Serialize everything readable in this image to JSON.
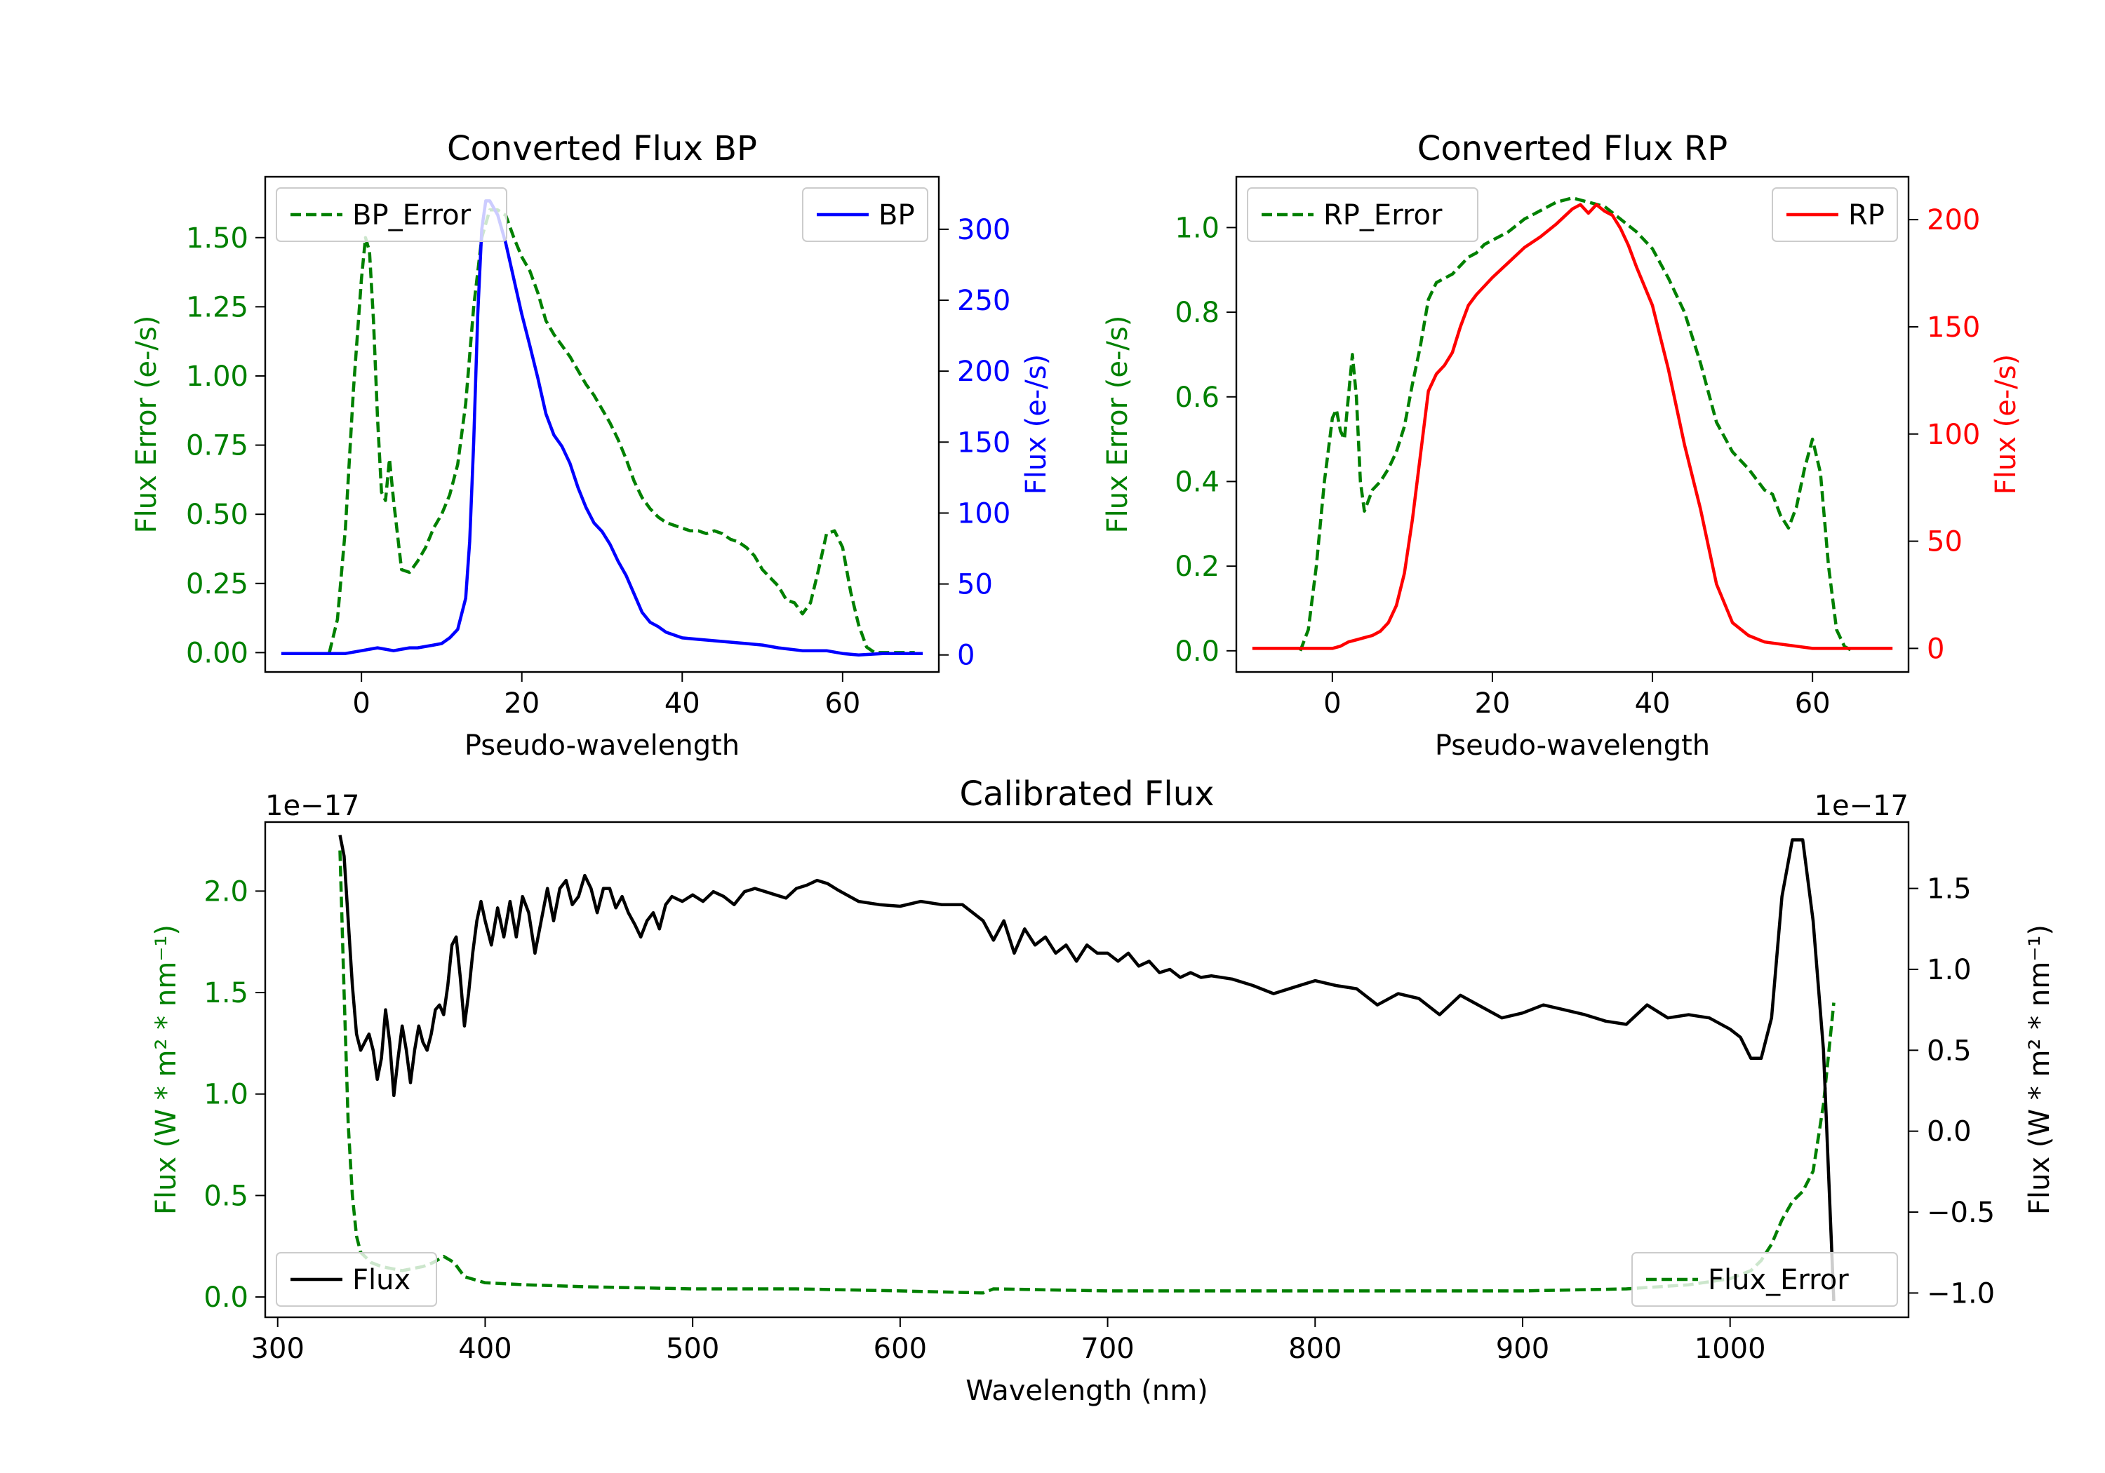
{
  "chart_data": [
    {
      "type": "line",
      "title": "Converted Flux BP",
      "xlabel": "Pseudo-wavelength",
      "xlim": [
        -12,
        72
      ],
      "xticks": [
        0,
        20,
        40,
        60
      ],
      "left_axis": {
        "label": "Flux Error (e-/s)",
        "color": "#008000",
        "lim": [
          -0.07,
          1.72
        ],
        "ticks": [
          "0.00",
          "0.25",
          "0.50",
          "0.75",
          "1.00",
          "1.25",
          "1.50"
        ]
      },
      "right_axis": {
        "label": "Flux (e-/s)",
        "color": "#0000ff",
        "lim": [
          -12,
          337
        ],
        "ticks": [
          "0",
          "50",
          "100",
          "150",
          "200",
          "250",
          "300"
        ]
      },
      "series": [
        {
          "name": "BP_Error",
          "axis": "left",
          "style": "dashed",
          "color": "#008000",
          "x": [
            -4,
            -3,
            -2,
            -1,
            0,
            0.5,
            1,
            1.5,
            2,
            2.5,
            3,
            3.5,
            4,
            5,
            6,
            7,
            8,
            9,
            10,
            11,
            12,
            13,
            14,
            15,
            16,
            17,
            18,
            19,
            20,
            21,
            22,
            23,
            24,
            25,
            26,
            27,
            28,
            29,
            30,
            31,
            32,
            33,
            34,
            35,
            36,
            37,
            38,
            39,
            40,
            41,
            42,
            43,
            44,
            45,
            46,
            47,
            48,
            49,
            50,
            51,
            52,
            53,
            54,
            55,
            56,
            57,
            58,
            59,
            60,
            61,
            62,
            63,
            64,
            65,
            66,
            67,
            68,
            69
          ],
          "y": [
            0.0,
            0.12,
            0.45,
            0.95,
            1.35,
            1.5,
            1.45,
            1.2,
            0.85,
            0.58,
            0.55,
            0.7,
            0.55,
            0.3,
            0.29,
            0.33,
            0.38,
            0.45,
            0.5,
            0.57,
            0.68,
            0.9,
            1.25,
            1.5,
            1.6,
            1.6,
            1.58,
            1.5,
            1.43,
            1.38,
            1.3,
            1.2,
            1.15,
            1.11,
            1.07,
            1.02,
            0.97,
            0.93,
            0.88,
            0.83,
            0.77,
            0.7,
            0.62,
            0.56,
            0.52,
            0.49,
            0.47,
            0.46,
            0.45,
            0.44,
            0.44,
            0.43,
            0.44,
            0.43,
            0.41,
            0.4,
            0.38,
            0.35,
            0.3,
            0.27,
            0.24,
            0.19,
            0.18,
            0.14,
            0.18,
            0.3,
            0.43,
            0.44,
            0.38,
            0.22,
            0.1,
            0.02,
            0.0,
            0.0,
            0.0,
            0.0,
            0.0,
            0.0
          ]
        },
        {
          "name": "BP",
          "axis": "right",
          "style": "solid",
          "color": "#0000ff",
          "x": [
            -10,
            -5,
            -2,
            0,
            1,
            2,
            3,
            4,
            5,
            6,
            7,
            8,
            9,
            10,
            11,
            12,
            13,
            13.5,
            14,
            14.5,
            15,
            15.5,
            16,
            17,
            18,
            19,
            20,
            21,
            22,
            23,
            24,
            25,
            26,
            27,
            28,
            29,
            30,
            31,
            32,
            33,
            34,
            35,
            36,
            37,
            38,
            39,
            40,
            42,
            44,
            46,
            48,
            50,
            52,
            55,
            58,
            60,
            62,
            65,
            68,
            70
          ],
          "y": [
            1,
            1,
            1,
            3,
            4,
            5,
            4,
            3,
            4,
            5,
            5,
            6,
            7,
            8,
            12,
            18,
            40,
            80,
            150,
            240,
            300,
            320,
            320,
            310,
            290,
            265,
            240,
            218,
            195,
            170,
            155,
            147,
            135,
            118,
            104,
            93,
            87,
            78,
            66,
            56,
            43,
            30,
            23,
            20,
            16,
            14,
            12,
            11,
            10,
            9,
            8,
            7,
            5,
            3,
            3,
            1,
            0,
            1,
            1,
            1
          ]
        }
      ],
      "legends": [
        {
          "label": "BP_Error",
          "loc": "upper-left"
        },
        {
          "label": "BP",
          "loc": "upper-right"
        }
      ]
    },
    {
      "type": "line",
      "title": "Converted Flux RP",
      "xlabel": "Pseudo-wavelength",
      "xlim": [
        -12,
        72
      ],
      "xticks": [
        0,
        20,
        40,
        60
      ],
      "left_axis": {
        "label": "Flux Error (e-/s)",
        "color": "#008000",
        "lim": [
          -0.05,
          1.12
        ],
        "ticks": [
          "0.0",
          "0.2",
          "0.4",
          "0.6",
          "0.8",
          "1.0"
        ]
      },
      "right_axis": {
        "label": "Flux (e-/s)",
        "color": "#ff0000",
        "lim": [
          -11,
          220
        ],
        "ticks": [
          "0",
          "50",
          "100",
          "150",
          "200"
        ]
      },
      "series": [
        {
          "name": "RP_Error",
          "axis": "left",
          "style": "dashed",
          "color": "#008000",
          "x": [
            -4,
            -3,
            -2,
            -1,
            0,
            0.5,
            1,
            1.5,
            2,
            2.5,
            3,
            3.5,
            4,
            5,
            6,
            7,
            8,
            9,
            10,
            11,
            12,
            13,
            14,
            15,
            16,
            17,
            18,
            19,
            20,
            22,
            24,
            26,
            28,
            30,
            32,
            34,
            36,
            38,
            40,
            42,
            44,
            46,
            48,
            50,
            52,
            54,
            55,
            56,
            57,
            58,
            59,
            60,
            61,
            62,
            63,
            64,
            65
          ],
          "y": [
            0.0,
            0.05,
            0.2,
            0.4,
            0.55,
            0.57,
            0.52,
            0.5,
            0.6,
            0.7,
            0.6,
            0.4,
            0.33,
            0.38,
            0.4,
            0.43,
            0.47,
            0.53,
            0.63,
            0.72,
            0.83,
            0.87,
            0.88,
            0.89,
            0.91,
            0.93,
            0.94,
            0.96,
            0.97,
            0.99,
            1.02,
            1.04,
            1.06,
            1.07,
            1.06,
            1.05,
            1.02,
            0.99,
            0.95,
            0.88,
            0.8,
            0.68,
            0.54,
            0.47,
            0.43,
            0.38,
            0.37,
            0.32,
            0.29,
            0.34,
            0.43,
            0.5,
            0.42,
            0.2,
            0.05,
            0.01,
            0.0
          ]
        },
        {
          "name": "RP",
          "axis": "right",
          "style": "solid",
          "color": "#ff0000",
          "x": [
            -10,
            -2,
            0,
            1,
            2,
            3,
            4,
            5,
            6,
            7,
            8,
            9,
            10,
            11,
            12,
            13,
            14,
            15,
            16,
            17,
            18,
            20,
            22,
            24,
            26,
            28,
            30,
            31,
            32,
            33,
            34,
            35,
            36,
            37,
            38,
            40,
            42,
            44,
            46,
            48,
            50,
            52,
            54,
            56,
            58,
            60,
            62,
            65,
            70
          ],
          "y": [
            0,
            0,
            0,
            1,
            3,
            4,
            5,
            6,
            8,
            12,
            20,
            35,
            60,
            90,
            120,
            128,
            132,
            138,
            150,
            160,
            165,
            173,
            180,
            187,
            192,
            198,
            205,
            207,
            203,
            207,
            204,
            202,
            196,
            188,
            178,
            160,
            130,
            95,
            65,
            30,
            12,
            6,
            3,
            2,
            1,
            0,
            0,
            0,
            0
          ]
        }
      ],
      "legends": [
        {
          "label": "RP_Error",
          "loc": "upper-left"
        },
        {
          "label": "RP",
          "loc": "upper-right"
        }
      ]
    },
    {
      "type": "line",
      "title": "Calibrated Flux",
      "xlabel": "Wavelength (nm)",
      "xlim": [
        294,
        1086
      ],
      "xticks": [
        300,
        400,
        500,
        600,
        700,
        800,
        900,
        1000
      ],
      "left_axis": {
        "label": "Flux (W * m² * nm⁻¹)",
        "color": "#008000",
        "lim": [
          -0.1,
          2.34
        ],
        "ticks": [
          "0.0",
          "0.5",
          "1.0",
          "1.5",
          "2.0"
        ],
        "offset_text": "1e−17"
      },
      "right_axis": {
        "label": "Flux (W * m² * nm⁻¹)",
        "color": "#000000",
        "lim": [
          -1.15,
          1.91
        ],
        "ticks": [
          "−1.0",
          "−0.5",
          "0.0",
          "0.5",
          "1.0",
          "1.5"
        ],
        "offset_text": "1e−17"
      },
      "series": [
        {
          "name": "Flux_Error",
          "axis": "left",
          "style": "dashed",
          "color": "#008000",
          "x": [
            330,
            332,
            334,
            336,
            338,
            340,
            345,
            350,
            360,
            370,
            375,
            380,
            385,
            390,
            400,
            420,
            450,
            500,
            550,
            600,
            640,
            645,
            700,
            750,
            800,
            850,
            900,
            950,
            980,
            1000,
            1010,
            1015,
            1020,
            1025,
            1030,
            1035,
            1040,
            1045,
            1050
          ],
          "y": [
            2.2,
            1.5,
            0.85,
            0.5,
            0.3,
            0.22,
            0.17,
            0.15,
            0.13,
            0.15,
            0.17,
            0.2,
            0.17,
            0.1,
            0.07,
            0.06,
            0.05,
            0.04,
            0.04,
            0.03,
            0.02,
            0.04,
            0.03,
            0.03,
            0.03,
            0.03,
            0.03,
            0.04,
            0.06,
            0.09,
            0.13,
            0.18,
            0.26,
            0.38,
            0.47,
            0.52,
            0.62,
            0.95,
            1.45
          ]
        },
        {
          "name": "Flux",
          "axis": "right",
          "style": "solid",
          "color": "#000000",
          "x": [
            330,
            332,
            334,
            336,
            338,
            340,
            342,
            344,
            346,
            348,
            350,
            352,
            354,
            356,
            358,
            360,
            362,
            364,
            366,
            368,
            370,
            372,
            374,
            376,
            378,
            380,
            382,
            384,
            386,
            388,
            390,
            392,
            394,
            396,
            398,
            400,
            403,
            406,
            409,
            412,
            415,
            418,
            421,
            424,
            427,
            430,
            433,
            436,
            439,
            442,
            445,
            448,
            451,
            454,
            457,
            460,
            463,
            466,
            469,
            472,
            475,
            478,
            481,
            484,
            487,
            490,
            495,
            500,
            505,
            510,
            515,
            520,
            525,
            530,
            535,
            540,
            545,
            550,
            555,
            560,
            565,
            570,
            580,
            590,
            600,
            610,
            620,
            630,
            640,
            645,
            650,
            655,
            660,
            665,
            670,
            675,
            680,
            685,
            690,
            695,
            700,
            705,
            710,
            715,
            720,
            725,
            730,
            735,
            740,
            745,
            750,
            760,
            770,
            780,
            790,
            800,
            810,
            820,
            830,
            840,
            850,
            860,
            870,
            880,
            890,
            900,
            910,
            920,
            930,
            940,
            950,
            960,
            970,
            980,
            990,
            1000,
            1005,
            1010,
            1015,
            1020,
            1025,
            1030,
            1035,
            1040,
            1045,
            1050
          ],
          "y": [
            1.83,
            1.7,
            1.3,
            0.9,
            0.6,
            0.5,
            0.55,
            0.6,
            0.5,
            0.32,
            0.45,
            0.75,
            0.55,
            0.22,
            0.45,
            0.65,
            0.5,
            0.3,
            0.5,
            0.65,
            0.55,
            0.5,
            0.6,
            0.75,
            0.78,
            0.72,
            0.9,
            1.15,
            1.2,
            0.95,
            0.65,
            0.85,
            1.1,
            1.3,
            1.42,
            1.3,
            1.15,
            1.38,
            1.2,
            1.42,
            1.2,
            1.45,
            1.35,
            1.1,
            1.3,
            1.5,
            1.3,
            1.5,
            1.55,
            1.4,
            1.45,
            1.58,
            1.5,
            1.35,
            1.5,
            1.5,
            1.38,
            1.45,
            1.35,
            1.28,
            1.2,
            1.3,
            1.35,
            1.25,
            1.4,
            1.45,
            1.42,
            1.46,
            1.42,
            1.48,
            1.45,
            1.4,
            1.48,
            1.5,
            1.48,
            1.46,
            1.44,
            1.5,
            1.52,
            1.55,
            1.53,
            1.49,
            1.42,
            1.4,
            1.39,
            1.42,
            1.4,
            1.4,
            1.3,
            1.18,
            1.3,
            1.1,
            1.25,
            1.15,
            1.2,
            1.1,
            1.15,
            1.05,
            1.15,
            1.1,
            1.1,
            1.05,
            1.1,
            1.02,
            1.05,
            0.98,
            1.0,
            0.95,
            0.98,
            0.95,
            0.96,
            0.94,
            0.9,
            0.85,
            0.89,
            0.93,
            0.9,
            0.88,
            0.78,
            0.85,
            0.82,
            0.72,
            0.84,
            0.77,
            0.7,
            0.73,
            0.78,
            0.75,
            0.72,
            0.68,
            0.66,
            0.78,
            0.7,
            0.72,
            0.7,
            0.63,
            0.58,
            0.45,
            0.45,
            0.7,
            1.45,
            1.8,
            1.8,
            1.3,
            0.5,
            -1.05
          ]
        }
      ],
      "legends": [
        {
          "label": "Flux",
          "loc": "lower-left"
        },
        {
          "label": "Flux_Error",
          "loc": "lower-right"
        }
      ]
    }
  ]
}
